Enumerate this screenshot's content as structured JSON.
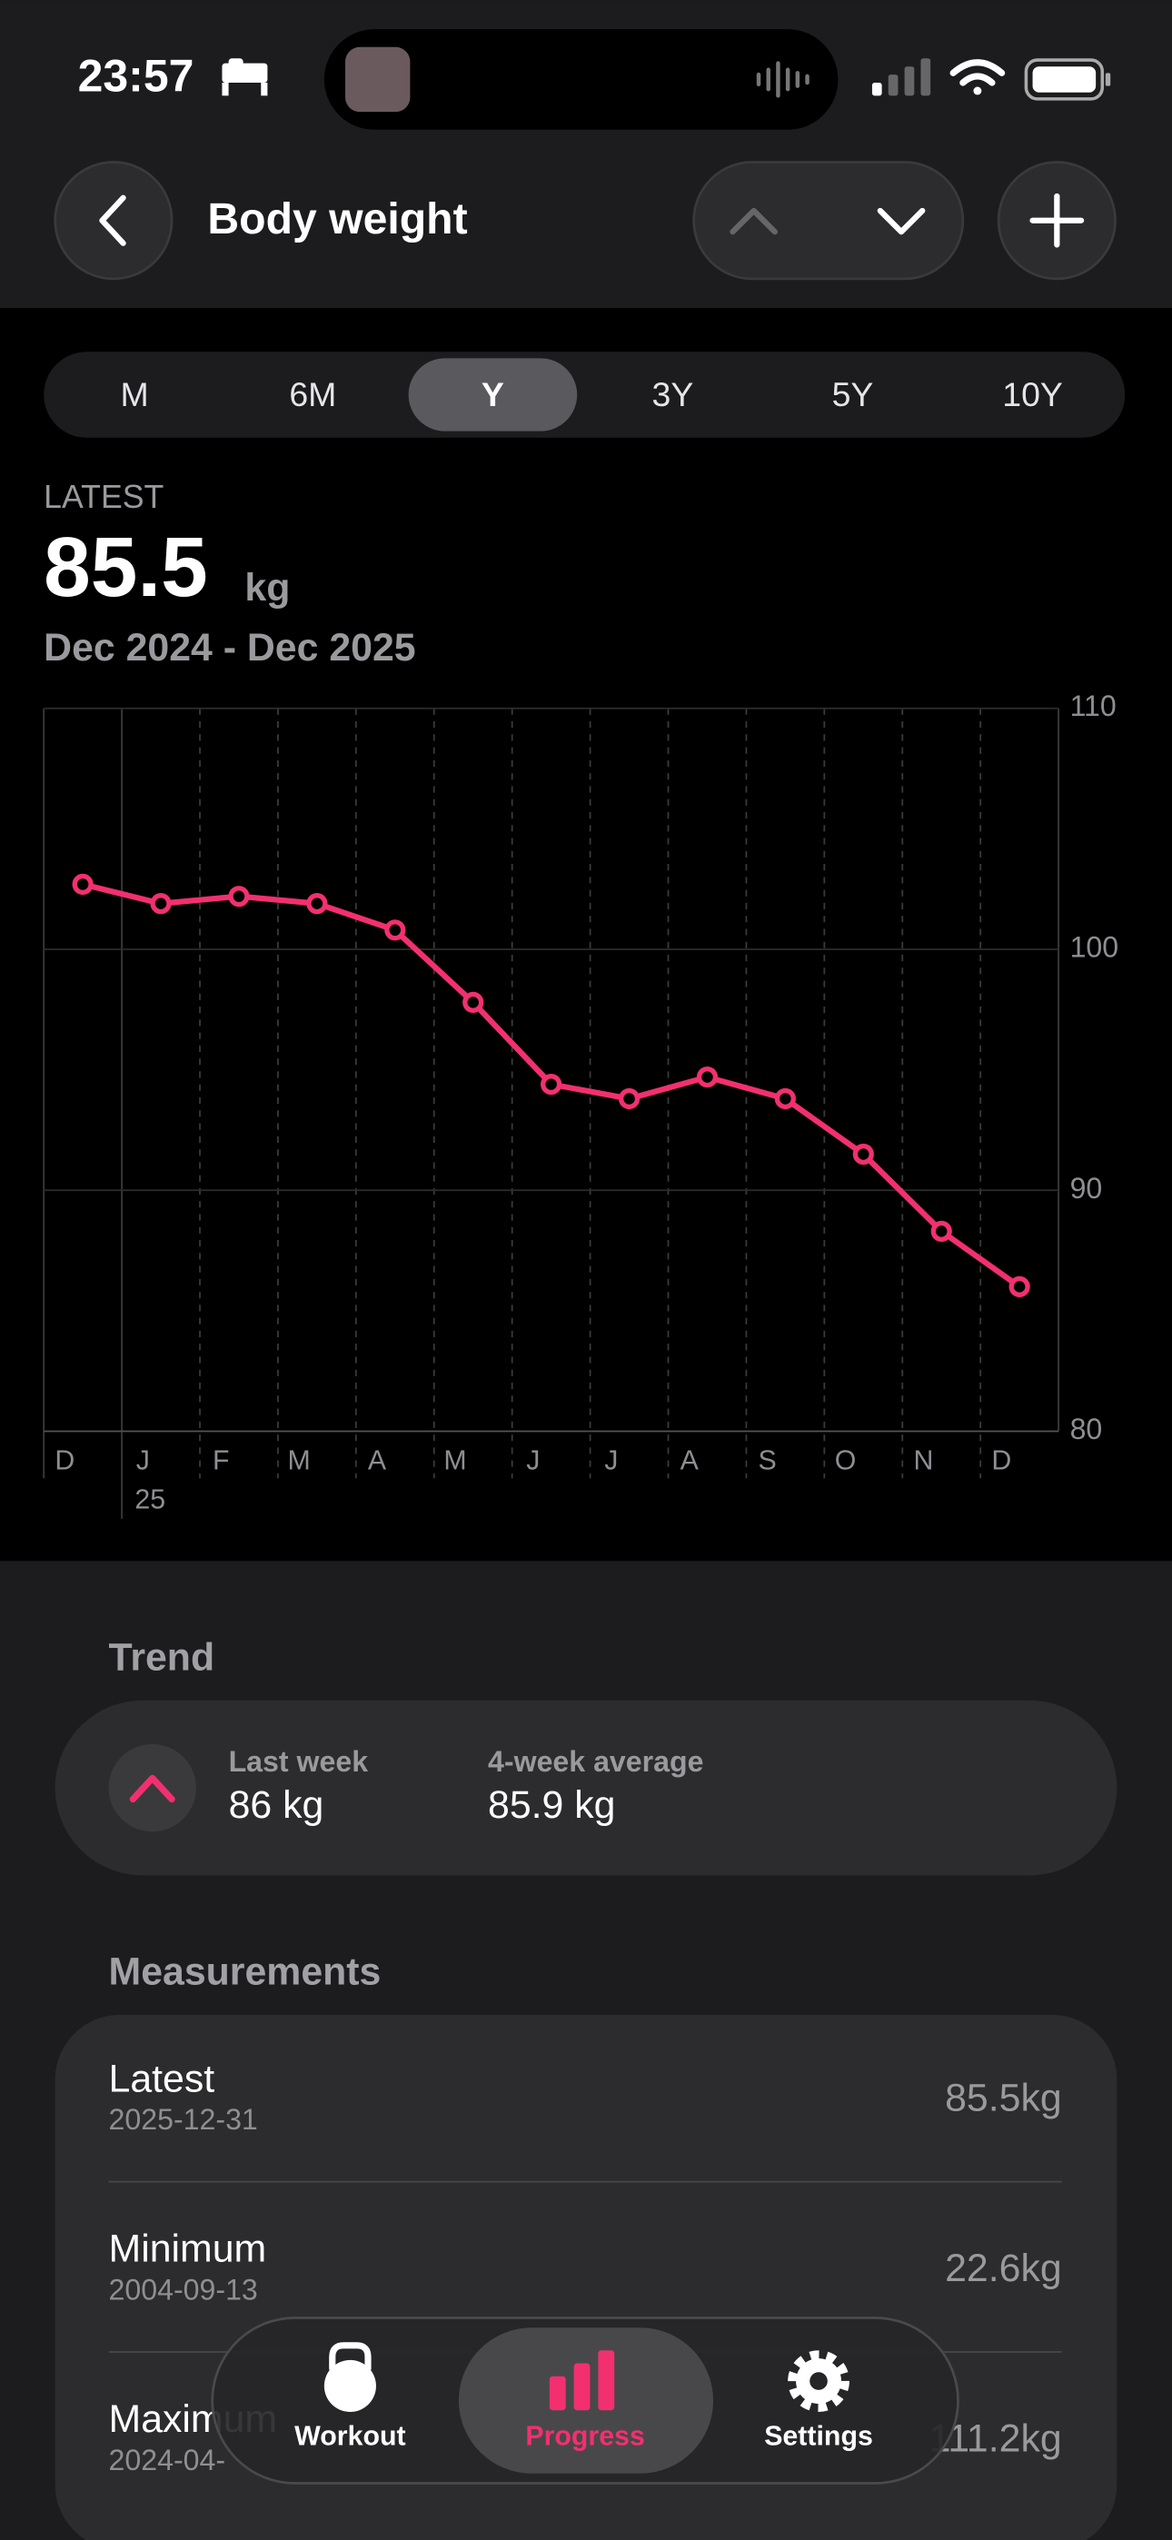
{
  "status_bar": {
    "time": "23:57"
  },
  "header": {
    "title": "Body weight"
  },
  "range_tabs": {
    "options": [
      "M",
      "6M",
      "Y",
      "3Y",
      "5Y",
      "10Y"
    ],
    "selected": "Y"
  },
  "summary": {
    "label": "LATEST",
    "value": "85.5",
    "unit": "kg",
    "period": "Dec 2024 - Dec 2025"
  },
  "chart_data": {
    "type": "line",
    "categories": [
      "D",
      "J",
      "F",
      "M",
      "A",
      "M",
      "J",
      "J",
      "A",
      "S",
      "O",
      "N",
      "D"
    ],
    "year_marker": "25",
    "values": [
      102.7,
      101.9,
      102.2,
      101.9,
      100.8,
      97.8,
      94.4,
      93.8,
      94.7,
      93.8,
      91.5,
      88.3,
      86.0
    ],
    "color": "#f2306f",
    "ylim": [
      80,
      110
    ],
    "yticks": [
      80,
      90,
      100,
      110
    ],
    "grid": true
  },
  "trend": {
    "title": "Trend",
    "items": [
      {
        "label": "Last week",
        "value": "86 kg"
      },
      {
        "label": "4-week average",
        "value": "85.9 kg"
      }
    ]
  },
  "measurements": {
    "title": "Measurements",
    "rows": [
      {
        "label": "Latest",
        "date": "2025-12-31",
        "value": "85.5kg"
      },
      {
        "label": "Minimum",
        "date": "2004-09-13",
        "value": "22.6kg"
      },
      {
        "label": "Maximum",
        "date": "2024-04-",
        "value": "111.2kg"
      }
    ]
  },
  "tab_bar": {
    "tabs": [
      "Workout",
      "Progress",
      "Settings"
    ],
    "selected": "Progress"
  }
}
